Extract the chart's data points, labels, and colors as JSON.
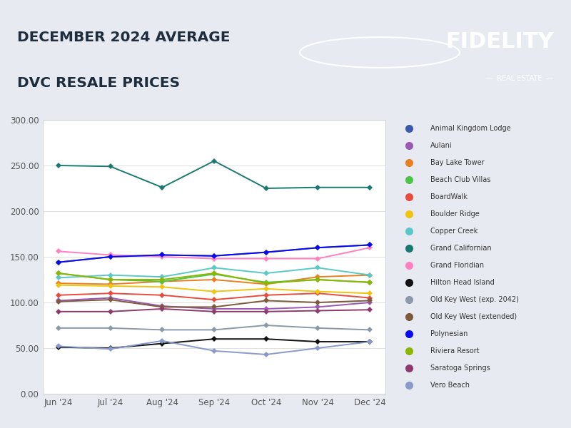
{
  "title_line1": "DECEMBER 2024 AVERAGE",
  "title_line2": "DVC RESALE PRICES",
  "bg_color": "#e8eaf2",
  "chart_bg": "#ffffff",
  "header_orange": "#f5a623",
  "x_labels": [
    "Jun '24",
    "Jul '24",
    "Aug '24",
    "Sep '24",
    "Oct '24",
    "Nov '24",
    "Dec '24"
  ],
  "ylim": [
    0,
    300
  ],
  "yticks": [
    0,
    50,
    100,
    150,
    200,
    250,
    300
  ],
  "series": [
    {
      "name": "Animal Kingdom Lodge",
      "color": "#3a5bab",
      "values": [
        144,
        150,
        152,
        151,
        155,
        160,
        163
      ]
    },
    {
      "name": "Aulani",
      "color": "#9b59b6",
      "values": [
        102,
        105,
        96,
        93,
        93,
        95,
        100
      ]
    },
    {
      "name": "Bay Lake Tower",
      "color": "#e88020",
      "values": [
        121,
        120,
        123,
        125,
        120,
        128,
        130
      ]
    },
    {
      "name": "Beach Club Villas",
      "color": "#4ac74a",
      "values": [
        132,
        125,
        123,
        131,
        122,
        125,
        122
      ]
    },
    {
      "name": "BoardWalk",
      "color": "#e74c3c",
      "values": [
        108,
        110,
        108,
        103,
        108,
        110,
        105
      ]
    },
    {
      "name": "Boulder Ridge",
      "color": "#f1c40f",
      "values": [
        119,
        118,
        117,
        112,
        115,
        112,
        110
      ]
    },
    {
      "name": "Copper Creek",
      "color": "#5bc8c8",
      "values": [
        127,
        130,
        128,
        138,
        132,
        138,
        130
      ]
    },
    {
      "name": "Grand Californian",
      "color": "#1a7a72",
      "values": [
        250,
        249,
        226,
        255,
        225,
        226,
        226
      ]
    },
    {
      "name": "Grand Floridian",
      "color": "#ff80c0",
      "values": [
        156,
        152,
        150,
        148,
        148,
        148,
        160
      ]
    },
    {
      "name": "Hilton Head Island",
      "color": "#111111",
      "values": [
        51,
        50,
        55,
        60,
        60,
        57,
        57
      ]
    },
    {
      "name": "Old Key West (exp. 2042)",
      "color": "#8a9aaa",
      "values": [
        72,
        72,
        70,
        70,
        75,
        72,
        70
      ]
    },
    {
      "name": "Old Key West (extended)",
      "color": "#7d5a3c",
      "values": [
        101,
        103,
        95,
        95,
        102,
        100,
        102
      ]
    },
    {
      "name": "Polynesian",
      "color": "#0a0aee",
      "values": [
        144,
        150,
        152,
        151,
        155,
        160,
        163
      ]
    },
    {
      "name": "Riviera Resort",
      "color": "#8db600",
      "values": [
        132,
        125,
        125,
        132,
        121,
        125,
        122
      ]
    },
    {
      "name": "Saratoga Springs",
      "color": "#8e3a6e",
      "values": [
        90,
        90,
        93,
        90,
        90,
        91,
        92
      ]
    },
    {
      "name": "Vero Beach",
      "color": "#8899cc",
      "values": [
        52,
        49,
        58,
        47,
        43,
        50,
        57
      ]
    }
  ]
}
